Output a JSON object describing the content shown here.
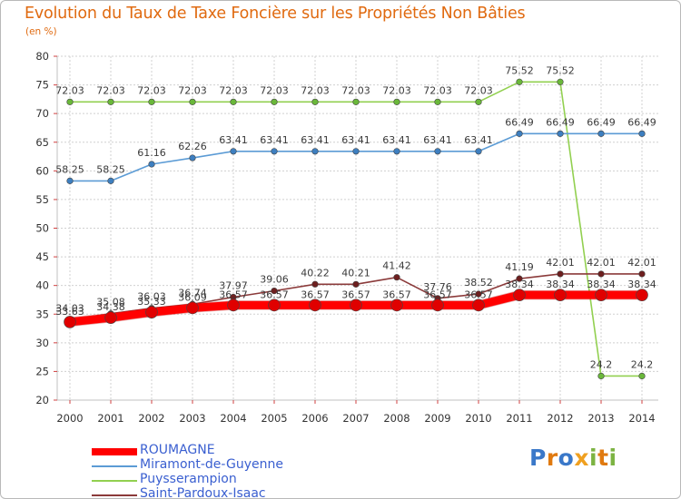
{
  "title": "Evolution du Taux de Taxe Foncière sur les Propriétés Non Bâties",
  "unit_label": "(en %)",
  "logo_text": "Proxiti",
  "colors": {
    "title": "#e06a10",
    "legend_text": "#3a5fd0",
    "grid": "#cccccc",
    "axis": "#b0b0b0"
  },
  "chart_data": {
    "type": "line",
    "title": "Evolution du Taux de Taxe Foncière sur les Propriétés Non Bâties",
    "ylabel": "(en %)",
    "xlabel": "",
    "ylim": [
      20,
      80
    ],
    "yticks": [
      "20",
      "25",
      "30",
      "35",
      "40",
      "45",
      "50",
      "55",
      "60",
      "65",
      "70",
      "75",
      "80"
    ],
    "grid": true,
    "legend_position": "bottom",
    "x": [
      "2000",
      "2001",
      "2002",
      "2003",
      "2004",
      "2005",
      "2006",
      "2007",
      "2008",
      "2009",
      "2010",
      "2011",
      "2012",
      "2013",
      "2014"
    ],
    "series": [
      {
        "name": "ROUMAGNE",
        "color": "#ff0000",
        "marker": "#e00000",
        "values": [
          33.63,
          34.38,
          35.33,
          36.09,
          36.57,
          36.57,
          36.57,
          36.57,
          36.57,
          36.57,
          36.57,
          38.34,
          38.34,
          38.34,
          38.34
        ],
        "labels": [
          "33.63",
          "34.38",
          "35.33",
          "36.09",
          "36.57",
          "36.57",
          "36.57",
          "36.57",
          "36.57",
          "36.57",
          "36.57",
          "38.34",
          "38.34",
          "38.34",
          "38.34"
        ]
      },
      {
        "name": "Miramont-de-Guyenne",
        "color": "#5b9bd5",
        "marker": "#3d7fc0",
        "values": [
          58.25,
          58.25,
          61.16,
          62.26,
          63.41,
          63.41,
          63.41,
          63.41,
          63.41,
          63.41,
          63.41,
          66.49,
          66.49,
          66.49,
          66.49
        ],
        "labels": [
          "58.25",
          "58.25",
          "61.16",
          "62.26",
          "63.41",
          "63.41",
          "63.41",
          "63.41",
          "63.41",
          "63.41",
          "63.41",
          "66.49",
          "66.49",
          "66.49",
          "66.49"
        ]
      },
      {
        "name": "Puysserampion",
        "color": "#92d050",
        "marker": "#6ab83a",
        "values": [
          72.03,
          72.03,
          72.03,
          72.03,
          72.03,
          72.03,
          72.03,
          72.03,
          72.03,
          72.03,
          72.03,
          75.52,
          75.52,
          24.2,
          24.2
        ],
        "labels": [
          "72.03",
          "72.03",
          "72.03",
          "72.03",
          "72.03",
          "72.03",
          "72.03",
          "72.03",
          "72.03",
          "72.03",
          "72.03",
          "75.52",
          "75.52",
          "24.2",
          "24.2"
        ]
      },
      {
        "name": "Saint-Pardoux-Isaac",
        "color": "#8b3a3a",
        "marker": "#6e1f1f",
        "values": [
          34.03,
          35.08,
          36.03,
          36.74,
          37.97,
          39.06,
          40.22,
          40.21,
          41.42,
          37.76,
          38.52,
          41.19,
          42.01,
          42.01,
          42.01
        ],
        "labels": [
          "34.03",
          "35.08",
          "36.03",
          "36.74",
          "37.97",
          "39.06",
          "40.22",
          "40.21",
          "41.42",
          "37.76",
          "38.52",
          "41.19",
          "42.01",
          "42.01",
          "42.01"
        ]
      }
    ]
  }
}
